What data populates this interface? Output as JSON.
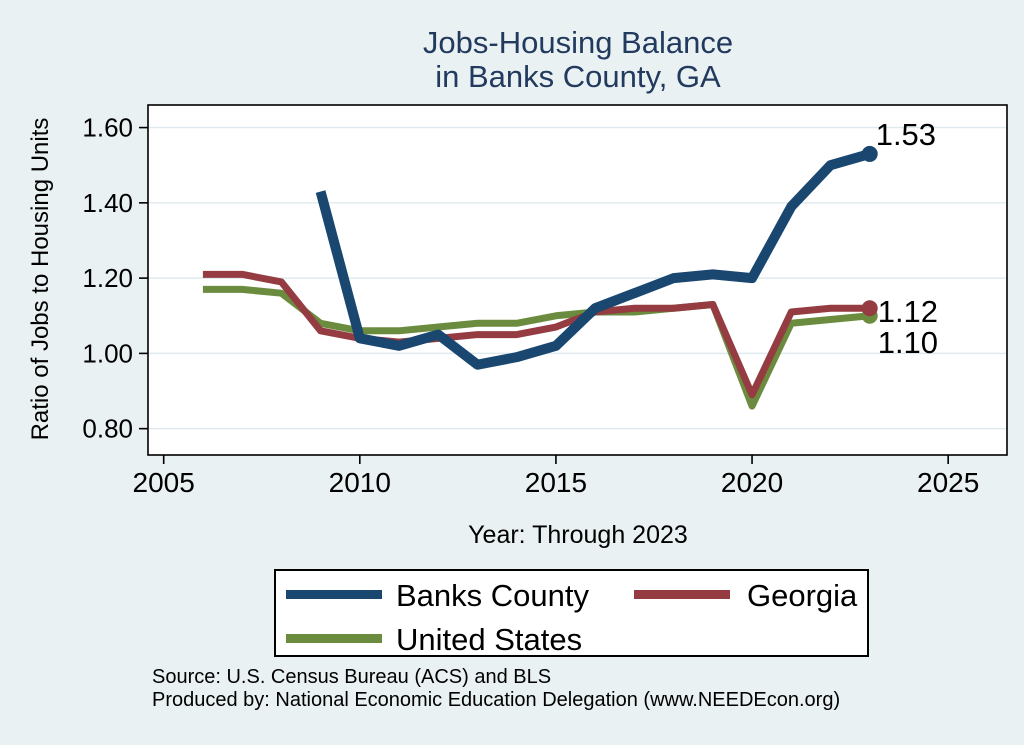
{
  "title": {
    "line1": "Jobs-Housing Balance",
    "line2": "in Banks County, GA"
  },
  "axes": {
    "y_title": "Ratio of Jobs to Housing Units",
    "x_title": "Year: Through 2023"
  },
  "legend": {
    "items": [
      {
        "label": "Banks County",
        "color": "#1a476f"
      },
      {
        "label": "Georgia",
        "color": "#943c42"
      },
      {
        "label": "United States",
        "color": "#6b8c3f"
      }
    ]
  },
  "footer": {
    "source_line": "Source: U.S. Census Bureau (ACS) and BLS",
    "produced_line": "Produced by: National Economic Education Delegation (www.NEEDEcon.org)"
  },
  "colors": {
    "background": "#eaf1f3",
    "plot_background": "#ffffff",
    "gridline": "#dfeaee",
    "axis": "#000000",
    "title_text": "#223a5e",
    "banks_county": "#1a476f",
    "georgia": "#943c42",
    "united_states": "#6b8c3f"
  },
  "chart_data": {
    "type": "line",
    "title": "Jobs-Housing Balance in Banks County, GA",
    "xlabel": "Year: Through 2023",
    "ylabel": "Ratio of Jobs to Housing Units",
    "xlim": [
      2004.6,
      2026.5
    ],
    "ylim": [
      0.73,
      1.66
    ],
    "grid": "horizontal",
    "legend_position": "bottom",
    "x_ticks": [
      {
        "value": 2005,
        "label": "2005"
      },
      {
        "value": 2010,
        "label": "2010"
      },
      {
        "value": 2015,
        "label": "2015"
      },
      {
        "value": 2020,
        "label": "2020"
      },
      {
        "value": 2025,
        "label": "2025"
      }
    ],
    "y_ticks": [
      {
        "value": 0.8,
        "label": "0.80"
      },
      {
        "value": 1.0,
        "label": "1.00"
      },
      {
        "value": 1.2,
        "label": "1.20"
      },
      {
        "value": 1.4,
        "label": "1.40"
      },
      {
        "value": 1.6,
        "label": "1.60"
      }
    ],
    "series": [
      {
        "name": "United States",
        "color": "#6b8c3f",
        "width": 7,
        "x": [
          2006,
          2007,
          2008,
          2009,
          2010,
          2011,
          2012,
          2013,
          2014,
          2015,
          2016,
          2017,
          2018,
          2019,
          2020,
          2021,
          2022,
          2023
        ],
        "values": [
          1.17,
          1.17,
          1.16,
          1.08,
          1.06,
          1.06,
          1.07,
          1.08,
          1.08,
          1.1,
          1.11,
          1.11,
          1.12,
          1.13,
          0.86,
          1.08,
          1.09,
          1.1
        ],
        "end_marker": true,
        "end_label": "1.10",
        "end_label_dx": 8,
        "end_label_dy": 37
      },
      {
        "name": "Georgia",
        "color": "#943c42",
        "width": 7,
        "x": [
          2006,
          2007,
          2008,
          2009,
          2010,
          2011,
          2012,
          2013,
          2014,
          2015,
          2016,
          2017,
          2018,
          2019,
          2020,
          2021,
          2022,
          2023
        ],
        "values": [
          1.21,
          1.21,
          1.19,
          1.06,
          1.04,
          1.03,
          1.04,
          1.05,
          1.05,
          1.07,
          1.11,
          1.12,
          1.12,
          1.13,
          0.89,
          1.11,
          1.12,
          1.12
        ],
        "end_marker": true,
        "end_label": "1.12",
        "end_label_dx": 8,
        "end_label_dy": 14
      },
      {
        "name": "Banks County",
        "color": "#1a476f",
        "width": 10,
        "x": [
          2009,
          2010,
          2011,
          2012,
          2013,
          2014,
          2015,
          2016,
          2017,
          2018,
          2019,
          2020,
          2021,
          2022,
          2023
        ],
        "values": [
          1.43,
          1.04,
          1.02,
          1.05,
          0.97,
          0.99,
          1.02,
          1.12,
          1.16,
          1.2,
          1.21,
          1.2,
          1.39,
          1.5,
          1.53
        ],
        "end_marker": true,
        "end_label": "1.53",
        "end_label_dx": 6,
        "end_label_dy": -9
      }
    ]
  }
}
